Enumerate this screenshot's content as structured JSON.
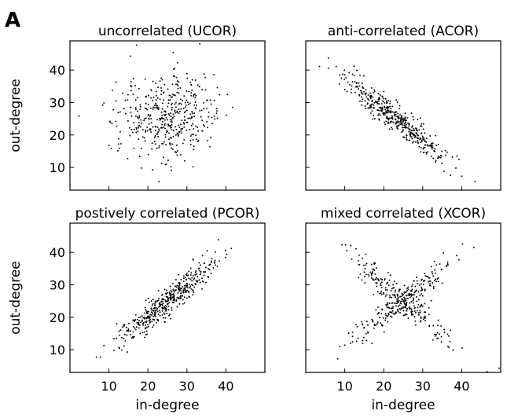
{
  "figure": {
    "panel_letter": "A"
  },
  "chart_data": [
    {
      "type": "scatter",
      "title": "uncorrelated (UCOR)",
      "xlabel": "",
      "ylabel": "out-degree",
      "xlim": [
        0,
        50
      ],
      "ylim": [
        3,
        49
      ],
      "xticks": [
        10,
        20,
        30,
        40
      ],
      "yticks": [
        10,
        20,
        30,
        40
      ],
      "show_xticklabels": false,
      "show_yticklabels": true,
      "grid": false,
      "x": [],
      "y": []
    },
    {
      "type": "scatter",
      "title": "anti-correlated (ACOR)",
      "xlabel": "",
      "ylabel": "",
      "xlim": [
        0,
        50
      ],
      "ylim": [
        3,
        49
      ],
      "xticks": [
        10,
        20,
        30,
        40
      ],
      "yticks": [
        10,
        20,
        30,
        40
      ],
      "show_xticklabels": false,
      "show_yticklabels": false,
      "grid": false,
      "x": [],
      "y": []
    },
    {
      "type": "scatter",
      "title": "postively correlated (PCOR)",
      "xlabel": "in-degree",
      "ylabel": "out-degree",
      "xlim": [
        0,
        50
      ],
      "ylim": [
        3,
        49
      ],
      "xticks": [
        10,
        20,
        30,
        40
      ],
      "yticks": [
        10,
        20,
        30,
        40
      ],
      "show_xticklabels": true,
      "show_yticklabels": true,
      "grid": false,
      "x": [],
      "y": []
    },
    {
      "type": "scatter",
      "title": "mixed correlated (XCOR)",
      "xlabel": "in-degree",
      "ylabel": "",
      "xlim": [
        0,
        50
      ],
      "ylim": [
        3,
        49
      ],
      "xticks": [
        10,
        20,
        30,
        40
      ],
      "yticks": [
        10,
        20,
        30,
        40
      ],
      "show_xticklabels": true,
      "show_yticklabels": false,
      "grid": false,
      "x": [],
      "y": []
    }
  ]
}
